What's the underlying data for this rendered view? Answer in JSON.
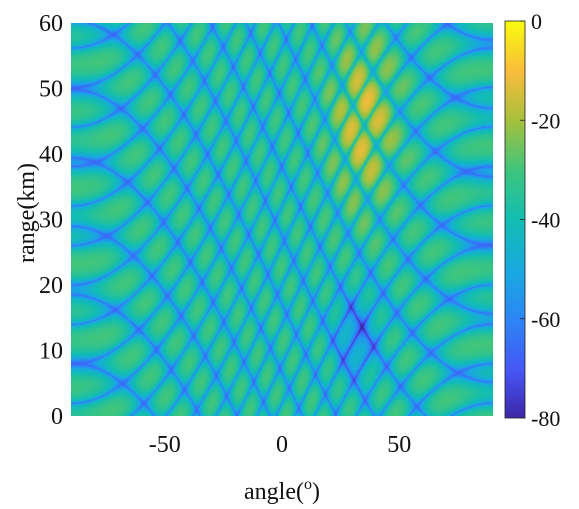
{
  "chart_data": {
    "type": "heatmap",
    "title": "",
    "xlabel_main": "angle(",
    "xlabel_sup": "o",
    "xlabel_end": ")",
    "ylabel": "range(km)",
    "xlim": [
      -90,
      90
    ],
    "ylim": [
      0,
      60
    ],
    "x_ticks": [
      -50,
      0,
      50
    ],
    "y_ticks": [
      0,
      10,
      20,
      30,
      40,
      50,
      60
    ],
    "colormap": "parula",
    "colorbar": {
      "range": [
        -80,
        0
      ],
      "ticks": [
        0,
        -20,
        -40,
        -60,
        -80
      ]
    },
    "peak": {
      "angle": 35,
      "range_km": 45,
      "value": 0
    },
    "colormap_stops": [
      {
        "t": 0.0,
        "color": "#3e26a8"
      },
      {
        "t": 0.12,
        "color": "#4656f6"
      },
      {
        "t": 0.25,
        "color": "#2c87f6"
      },
      {
        "t": 0.37,
        "color": "#18a9e0"
      },
      {
        "t": 0.5,
        "color": "#12bdb1"
      },
      {
        "t": 0.62,
        "color": "#3cc57f"
      },
      {
        "t": 0.75,
        "color": "#a7c03c"
      },
      {
        "t": 0.87,
        "color": "#f8bc3b"
      },
      {
        "t": 1.0,
        "color": "#f9fb0e"
      }
    ]
  }
}
